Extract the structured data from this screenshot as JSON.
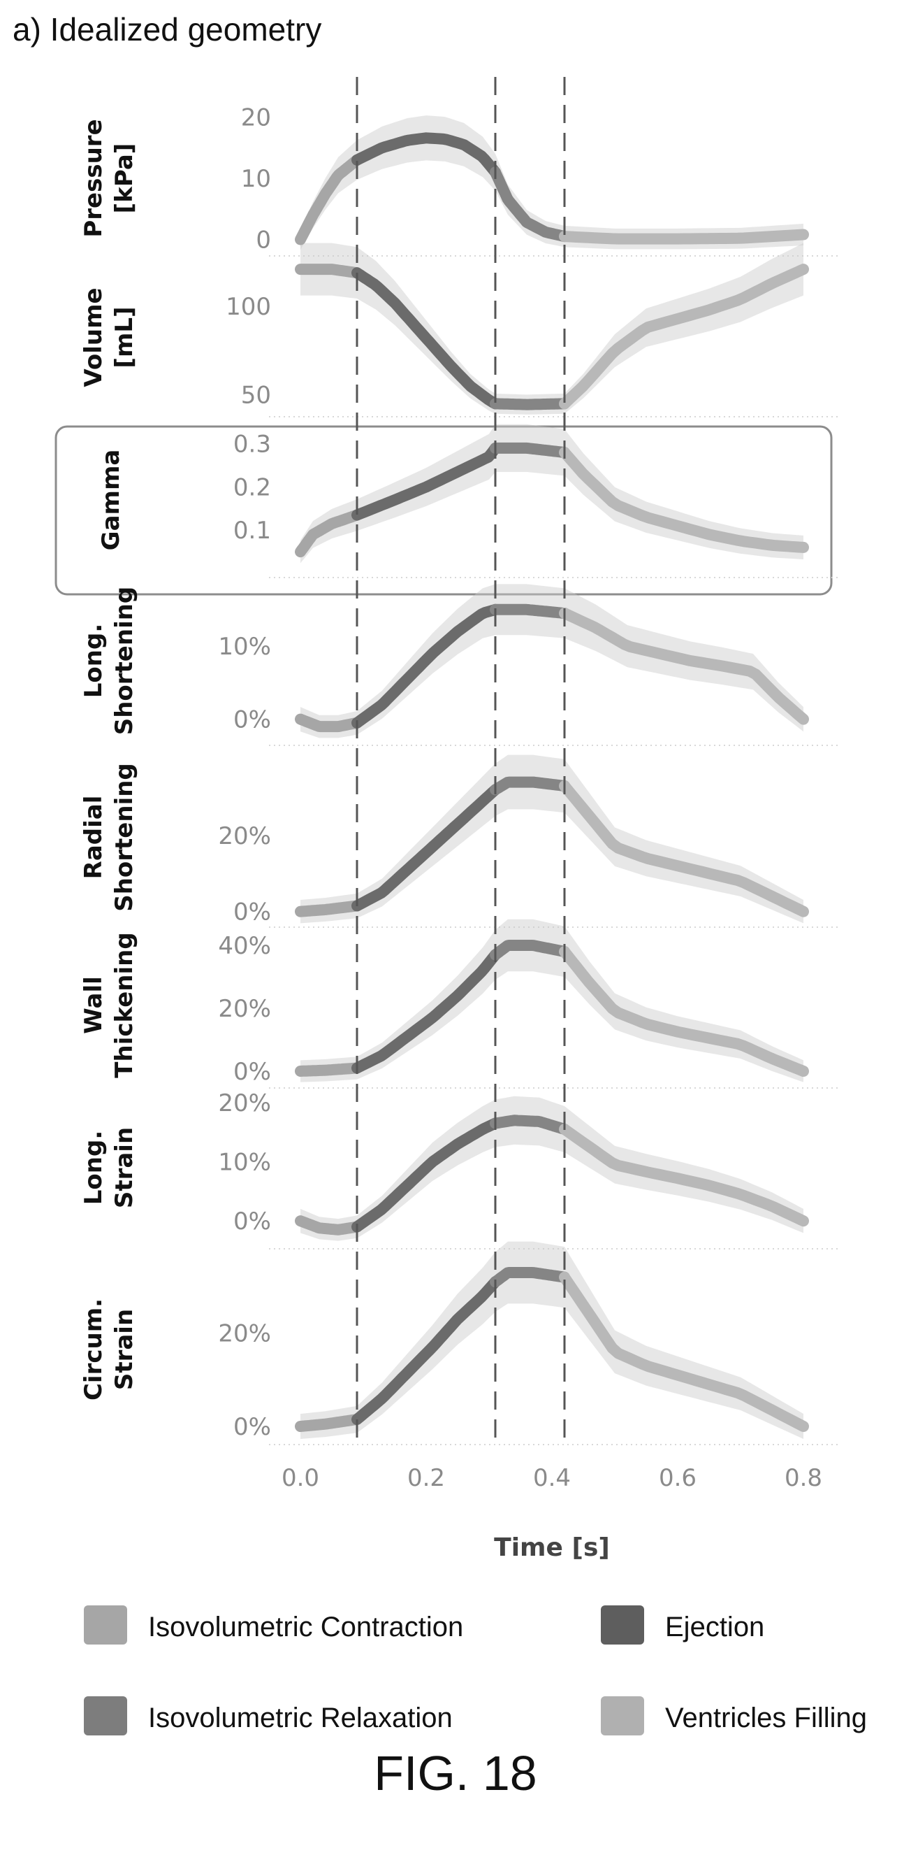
{
  "header": {
    "panel_title": "a) Idealized geometry"
  },
  "footer": {
    "figure_label": "FIG. 18"
  },
  "chart_data": {
    "type": "line",
    "x_axis": {
      "label": "Time [s]",
      "range": [
        0.0,
        0.8
      ],
      "ticks": [
        0.0,
        0.2,
        0.4,
        0.6,
        0.8
      ],
      "tick_labels": [
        "0.0",
        "0.2",
        "0.4",
        "0.6",
        "0.8"
      ]
    },
    "phase_boundaries": [
      0.09,
      0.31,
      0.42
    ],
    "phases": [
      {
        "name": "Isovolumetric Contraction",
        "from": 0.0,
        "to": 0.09,
        "color": "#a6a6a6"
      },
      {
        "name": "Ejection",
        "from": 0.09,
        "to": 0.31,
        "color": "#6b6b6b"
      },
      {
        "name": "Isovolumetric Relaxation",
        "from": 0.31,
        "to": 0.42,
        "color": "#858585"
      },
      {
        "name": "Ventricles Filling",
        "from": 0.42,
        "to": 0.8,
        "color": "#b8b8b8"
      }
    ],
    "legend": {
      "placement": "bottom",
      "entries": [
        {
          "label": "Isovolumetric Contraction",
          "color": "#a6a6a6"
        },
        {
          "label": "Ejection",
          "color": "#5e5e5e"
        },
        {
          "label": "Isovolumetric Relaxation",
          "color": "#7d7d7d"
        },
        {
          "label": "Ventricles Filling",
          "color": "#b0b0b0"
        }
      ]
    },
    "subplots": [
      {
        "ylabel": [
          "Pressure",
          "[kPa]"
        ],
        "ylim": [
          -2,
          22
        ],
        "yticks": [
          0,
          10,
          20
        ],
        "ytick_labels": [
          "0",
          "10",
          "20"
        ],
        "series": {
          "x": [
            0.0,
            0.02,
            0.04,
            0.06,
            0.09,
            0.13,
            0.17,
            0.2,
            0.23,
            0.26,
            0.29,
            0.31,
            0.33,
            0.36,
            0.39,
            0.42,
            0.5,
            0.6,
            0.7,
            0.8
          ],
          "y": [
            0,
            4,
            7.5,
            10.5,
            13,
            15,
            16.2,
            16.6,
            16.4,
            15.5,
            13.5,
            11,
            6.5,
            2.8,
            1.2,
            0.5,
            0.1,
            0.1,
            0.2,
            0.8
          ]
        }
      },
      {
        "ylabel": [
          "Volume",
          "[mL]"
        ],
        "ylim": [
          40,
          125
        ],
        "yticks": [
          50,
          100
        ],
        "ytick_labels": [
          "50",
          "100"
        ],
        "series": {
          "x": [
            0.0,
            0.05,
            0.09,
            0.12,
            0.15,
            0.18,
            0.21,
            0.24,
            0.27,
            0.3,
            0.31,
            0.36,
            0.42,
            0.45,
            0.5,
            0.55,
            0.6,
            0.65,
            0.7,
            0.75,
            0.8
          ],
          "y": [
            121,
            121,
            119,
            112,
            102,
            90,
            78,
            66,
            55,
            47,
            45,
            44.5,
            45,
            55,
            75,
            88,
            93,
            98,
            104,
            113,
            121
          ]
        }
      },
      {
        "ylabel": [
          "Gamma"
        ],
        "ylim": [
          0.0,
          0.34
        ],
        "yticks": [
          0.1,
          0.2,
          0.3
        ],
        "ytick_labels": [
          "0.1",
          "0.2",
          "0.3"
        ],
        "series": {
          "x": [
            0.0,
            0.02,
            0.05,
            0.09,
            0.15,
            0.2,
            0.25,
            0.3,
            0.31,
            0.36,
            0.42,
            0.45,
            0.5,
            0.55,
            0.6,
            0.65,
            0.7,
            0.75,
            0.8
          ],
          "y": [
            0.05,
            0.09,
            0.115,
            0.135,
            0.17,
            0.2,
            0.235,
            0.27,
            0.29,
            0.29,
            0.28,
            0.23,
            0.16,
            0.13,
            0.11,
            0.09,
            0.075,
            0.065,
            0.06
          ]
        }
      },
      {
        "ylabel": [
          "Long.",
          "Shortening"
        ],
        "ylim": [
          -3,
          19
        ],
        "yticks": [
          0,
          10
        ],
        "ytick_labels": [
          "0%",
          "10%"
        ],
        "series": {
          "x": [
            0.0,
            0.03,
            0.06,
            0.09,
            0.13,
            0.17,
            0.21,
            0.25,
            0.29,
            0.31,
            0.36,
            0.42,
            0.47,
            0.52,
            0.57,
            0.62,
            0.67,
            0.72,
            0.76,
            0.8
          ],
          "y": [
            0,
            -1,
            -1,
            -0.5,
            2,
            5.5,
            9,
            12,
            14.5,
            15,
            15,
            14.5,
            12.5,
            10,
            9,
            8,
            7.3,
            6.5,
            3,
            0
          ]
        }
      },
      {
        "ylabel": [
          "Radial",
          "Shortening"
        ],
        "ylim": [
          -3,
          42
        ],
        "yticks": [
          0,
          20
        ],
        "ytick_labels": [
          "0%",
          "20%"
        ],
        "series": {
          "x": [
            0.0,
            0.04,
            0.09,
            0.13,
            0.17,
            0.21,
            0.25,
            0.29,
            0.31,
            0.33,
            0.37,
            0.42,
            0.46,
            0.5,
            0.55,
            0.6,
            0.65,
            0.7,
            0.75,
            0.8
          ],
          "y": [
            0,
            0.5,
            1.5,
            5,
            11,
            17,
            23,
            29,
            32,
            34,
            34,
            33,
            25,
            17,
            14,
            12,
            10,
            8,
            4,
            0
          ]
        }
      },
      {
        "ylabel": [
          "Wall",
          "Thickening"
        ],
        "ylim": [
          -4,
          46
        ],
        "yticks": [
          0,
          20,
          40
        ],
        "ytick_labels": [
          "0%",
          "20%",
          "40%"
        ],
        "series": {
          "x": [
            0.0,
            0.04,
            0.09,
            0.13,
            0.17,
            0.21,
            0.25,
            0.29,
            0.31,
            0.33,
            0.37,
            0.42,
            0.46,
            0.5,
            0.55,
            0.6,
            0.65,
            0.7,
            0.75,
            0.8
          ],
          "y": [
            0,
            0.3,
            1,
            5,
            11,
            17,
            24,
            32,
            37,
            40,
            40,
            38,
            28,
            19,
            15,
            12.5,
            10.5,
            8.5,
            4,
            0
          ]
        }
      },
      {
        "ylabel": [
          "Long.",
          "Strain"
        ],
        "ylim": [
          -4,
          22
        ],
        "yticks": [
          0,
          10,
          20
        ],
        "ytick_labels": [
          "0%",
          "10%",
          "20%"
        ],
        "series": {
          "x": [
            0.0,
            0.03,
            0.06,
            0.09,
            0.13,
            0.17,
            0.21,
            0.25,
            0.29,
            0.31,
            0.34,
            0.38,
            0.42,
            0.46,
            0.5,
            0.55,
            0.6,
            0.65,
            0.7,
            0.75,
            0.8
          ],
          "y": [
            0,
            -1.2,
            -1.5,
            -1,
            2,
            6,
            10,
            13,
            15.5,
            16.5,
            17,
            16.8,
            15.5,
            12.5,
            9.5,
            8.3,
            7.2,
            6,
            4.5,
            2.5,
            0
          ]
        }
      },
      {
        "ylabel": [
          "Circum.",
          "Strain"
        ],
        "ylim": [
          -3,
          36
        ],
        "yticks": [
          0,
          20
        ],
        "ytick_labels": [
          "0%",
          "20%"
        ],
        "series": {
          "x": [
            0.0,
            0.04,
            0.09,
            0.13,
            0.17,
            0.21,
            0.25,
            0.29,
            0.31,
            0.33,
            0.37,
            0.42,
            0.46,
            0.5,
            0.55,
            0.6,
            0.65,
            0.7,
            0.75,
            0.8
          ],
          "y": [
            0,
            0.5,
            1.5,
            6,
            11.5,
            17,
            23,
            28,
            31,
            33,
            33,
            32,
            24,
            16,
            13,
            11,
            9,
            7,
            3.5,
            0
          ]
        }
      }
    ]
  }
}
